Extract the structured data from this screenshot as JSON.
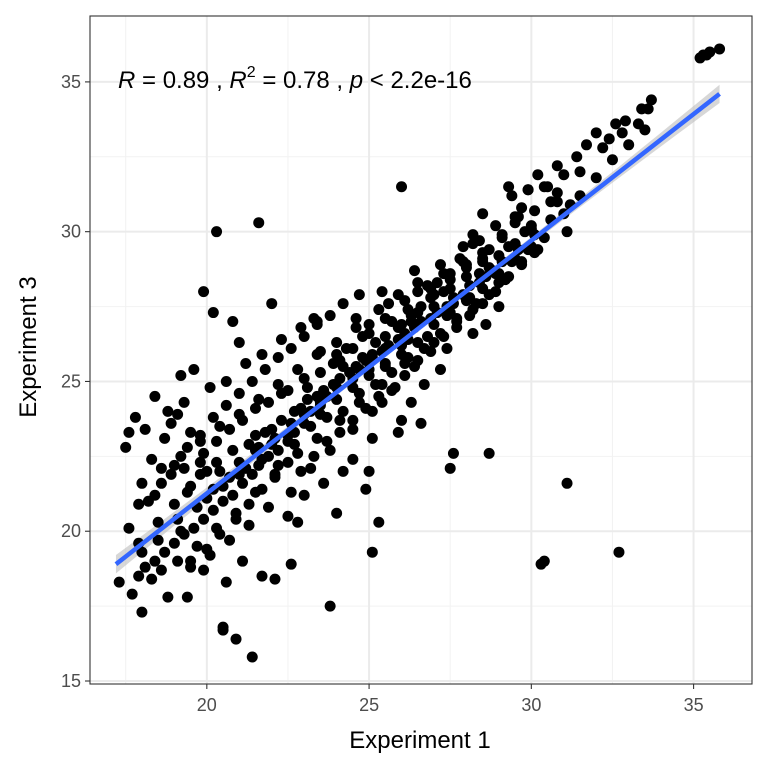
{
  "chart_data": {
    "type": "scatter",
    "xlabel": "Experiment 1",
    "ylabel": "Experiment 3",
    "xlim": [
      16.4,
      36.8
    ],
    "ylim": [
      14.9,
      37.2
    ],
    "xticks": [
      20,
      25,
      30,
      35
    ],
    "yticks": [
      15,
      20,
      25,
      30,
      35
    ],
    "grid": true,
    "annotation": {
      "r_label": "R",
      "r_value": " = 0.89 , ",
      "r2_label": "R",
      "r2_exp": "2",
      "r2_value": " = 0.78 , ",
      "p_label": "p",
      "p_value": " < 2.2e-16"
    },
    "regression": {
      "x": [
        17.2,
        35.8
      ],
      "y": [
        18.9,
        34.6
      ],
      "color": "#3366FF",
      "band_color": "#bdbdbd"
    },
    "point_color": "#000000",
    "points": [
      [
        35.2,
        35.8
      ],
      [
        35.3,
        35.9
      ],
      [
        35.4,
        35.9
      ],
      [
        35.5,
        36.0
      ],
      [
        35.8,
        36.1
      ],
      [
        33.6,
        34.1
      ],
      [
        33.7,
        34.4
      ],
      [
        33.4,
        34.1
      ],
      [
        33.3,
        33.6
      ],
      [
        32.9,
        33.7
      ],
      [
        32.6,
        33.6
      ],
      [
        32.8,
        33.3
      ],
      [
        32.0,
        33.3
      ],
      [
        32.4,
        33.1
      ],
      [
        31.7,
        32.9
      ],
      [
        32.2,
        32.8
      ],
      [
        31.4,
        32.5
      ],
      [
        31.5,
        32.0
      ],
      [
        30.8,
        32.2
      ],
      [
        31.0,
        31.9
      ],
      [
        30.2,
        31.9
      ],
      [
        30.5,
        31.5
      ],
      [
        30.8,
        31.0
      ],
      [
        29.9,
        31.4
      ],
      [
        29.4,
        31.2
      ],
      [
        29.7,
        30.8
      ],
      [
        31.2,
        30.9
      ],
      [
        30.0,
        30.2
      ],
      [
        31.1,
        30.0
      ],
      [
        29.5,
        30.5
      ],
      [
        28.9,
        30.2
      ],
      [
        28.2,
        29.9
      ],
      [
        28.7,
        29.4
      ],
      [
        29.1,
        29.8
      ],
      [
        29.8,
        30.0
      ],
      [
        28.5,
        29.1
      ],
      [
        28.0,
        28.8
      ],
      [
        27.8,
        29.1
      ],
      [
        28.4,
        28.6
      ],
      [
        27.5,
        28.6
      ],
      [
        27.1,
        28.3
      ],
      [
        27.3,
        28.0
      ],
      [
        26.9,
        27.8
      ],
      [
        27.6,
        27.6
      ],
      [
        26.6,
        27.5
      ],
      [
        26.3,
        27.2
      ],
      [
        26.0,
        26.9
      ],
      [
        25.7,
        27.0
      ],
      [
        26.2,
        26.4
      ],
      [
        25.5,
        26.1
      ],
      [
        25.2,
        26.3
      ],
      [
        24.8,
        25.8
      ],
      [
        25.0,
        25.4
      ],
      [
        24.5,
        25.1
      ],
      [
        24.2,
        25.5
      ],
      [
        24.0,
        24.8
      ],
      [
        23.7,
        24.5
      ],
      [
        23.5,
        24.2
      ],
      [
        23.2,
        24.0
      ],
      [
        23.0,
        23.6
      ],
      [
        22.7,
        23.3
      ],
      [
        22.5,
        23.0
      ],
      [
        22.2,
        22.7
      ],
      [
        21.9,
        22.5
      ],
      [
        21.6,
        22.2
      ],
      [
        21.4,
        21.9
      ],
      [
        21.1,
        21.6
      ],
      [
        20.8,
        21.2
      ],
      [
        20.5,
        21.0
      ],
      [
        20.2,
        20.7
      ],
      [
        19.9,
        20.4
      ],
      [
        19.6,
        20.1
      ],
      [
        19.3,
        19.9
      ],
      [
        19.0,
        19.6
      ],
      [
        18.7,
        19.3
      ],
      [
        18.4,
        19.0
      ],
      [
        18.1,
        18.8
      ],
      [
        17.9,
        18.5
      ],
      [
        29.3,
        29.5
      ],
      [
        28.8,
        28.7
      ],
      [
        28.1,
        27.8
      ],
      [
        27.4,
        27.2
      ],
      [
        26.8,
        26.5
      ],
      [
        26.1,
        25.6
      ],
      [
        25.4,
        24.9
      ],
      [
        24.7,
        24.3
      ],
      [
        24.1,
        23.7
      ],
      [
        23.4,
        23.1
      ],
      [
        22.8,
        22.6
      ],
      [
        22.1,
        21.9
      ],
      [
        21.5,
        21.3
      ],
      [
        20.9,
        20.6
      ],
      [
        20.3,
        20.1
      ],
      [
        19.7,
        19.5
      ],
      [
        19.1,
        19.0
      ],
      [
        18.6,
        18.7
      ],
      [
        27.9,
        29.5
      ],
      [
        27.2,
        28.9
      ],
      [
        26.5,
        28.3
      ],
      [
        25.9,
        27.9
      ],
      [
        25.3,
        27.4
      ],
      [
        24.6,
        26.8
      ],
      [
        24.0,
        26.3
      ],
      [
        23.4,
        25.9
      ],
      [
        22.8,
        25.4
      ],
      [
        22.2,
        24.9
      ],
      [
        21.6,
        24.4
      ],
      [
        21.0,
        23.9
      ],
      [
        20.4,
        23.5
      ],
      [
        19.8,
        23.0
      ],
      [
        19.2,
        22.5
      ],
      [
        18.6,
        22.1
      ],
      [
        18.0,
        21.6
      ],
      [
        29.0,
        28.3
      ],
      [
        28.3,
        27.6
      ],
      [
        27.7,
        27.0
      ],
      [
        27.0,
        26.3
      ],
      [
        26.4,
        25.5
      ],
      [
        25.8,
        24.8
      ],
      [
        25.1,
        24.0
      ],
      [
        24.5,
        23.4
      ],
      [
        23.8,
        22.7
      ],
      [
        23.2,
        22.1
      ],
      [
        22.6,
        21.3
      ],
      [
        21.9,
        20.8
      ],
      [
        21.3,
        20.2
      ],
      [
        20.7,
        19.7
      ],
      [
        20.1,
        19.2
      ],
      [
        19.5,
        18.8
      ],
      [
        17.3,
        18.3
      ],
      [
        17.7,
        17.9
      ],
      [
        18.0,
        17.3
      ],
      [
        18.3,
        18.4
      ],
      [
        18.8,
        17.8
      ],
      [
        19.4,
        17.8
      ],
      [
        19.9,
        18.7
      ],
      [
        20.6,
        18.3
      ],
      [
        21.1,
        19.0
      ],
      [
        21.7,
        18.5
      ],
      [
        22.1,
        18.4
      ],
      [
        22.6,
        18.9
      ],
      [
        20.5,
        16.7
      ],
      [
        20.5,
        16.8
      ],
      [
        20.9,
        16.4
      ],
      [
        21.4,
        15.8
      ],
      [
        23.8,
        17.5
      ],
      [
        17.6,
        20.1
      ],
      [
        17.9,
        19.6
      ],
      [
        18.5,
        20.3
      ],
      [
        19.0,
        20.9
      ],
      [
        19.5,
        21.5
      ],
      [
        20.0,
        22.0
      ],
      [
        17.5,
        22.8
      ],
      [
        18.1,
        23.4
      ],
      [
        18.8,
        24.0
      ],
      [
        19.2,
        25.2
      ],
      [
        19.6,
        25.4
      ],
      [
        17.6,
        23.3
      ],
      [
        17.8,
        23.8
      ],
      [
        18.4,
        24.5
      ],
      [
        19.9,
        28.0
      ],
      [
        20.2,
        27.3
      ],
      [
        20.3,
        30.0
      ],
      [
        20.8,
        27.0
      ],
      [
        21.0,
        26.3
      ],
      [
        21.6,
        30.3
      ],
      [
        22.0,
        27.6
      ],
      [
        23.3,
        27.1
      ],
      [
        23.4,
        27.0
      ],
      [
        24.7,
        27.9
      ],
      [
        25.4,
        28.0
      ],
      [
        26.0,
        31.5
      ],
      [
        26.1,
        27.7
      ],
      [
        26.4,
        28.7
      ],
      [
        26.8,
        28.2
      ],
      [
        27.0,
        27.5
      ],
      [
        28.5,
        30.6
      ],
      [
        29.3,
        31.5
      ],
      [
        29.9,
        31.4
      ],
      [
        30.4,
        31.5
      ],
      [
        30.8,
        31.3
      ],
      [
        28.2,
        29.6
      ],
      [
        28.7,
        28.8
      ],
      [
        29.0,
        27.5
      ],
      [
        28.6,
        26.9
      ],
      [
        28.2,
        26.6
      ],
      [
        27.4,
        26.1
      ],
      [
        27.2,
        25.4
      ],
      [
        26.7,
        24.9
      ],
      [
        26.3,
        24.3
      ],
      [
        26.0,
        23.7
      ],
      [
        25.1,
        23.1
      ],
      [
        24.5,
        22.4
      ],
      [
        24.2,
        22.0
      ],
      [
        23.6,
        21.6
      ],
      [
        23.0,
        21.2
      ],
      [
        22.5,
        20.5
      ],
      [
        22.8,
        20.3
      ],
      [
        24.9,
        21.4
      ],
      [
        25.0,
        22.0
      ],
      [
        25.1,
        19.3
      ],
      [
        25.3,
        20.3
      ],
      [
        24.0,
        20.6
      ],
      [
        25.4,
        24.3
      ],
      [
        25.9,
        23.3
      ],
      [
        26.6,
        23.6
      ],
      [
        27.6,
        22.6
      ],
      [
        27.5,
        22.1
      ],
      [
        28.7,
        22.6
      ],
      [
        30.3,
        18.9
      ],
      [
        30.4,
        19.0
      ],
      [
        31.1,
        21.6
      ],
      [
        32.7,
        19.3
      ],
      [
        18.9,
        23.6
      ],
      [
        19.3,
        24.3
      ],
      [
        20.1,
        24.8
      ],
      [
        20.6,
        25.0
      ],
      [
        21.2,
        25.6
      ],
      [
        21.7,
        25.9
      ],
      [
        22.3,
        26.4
      ],
      [
        22.9,
        26.8
      ],
      [
        23.5,
        26.0
      ],
      [
        24.1,
        25.7
      ],
      [
        24.8,
        26.5
      ],
      [
        25.5,
        27.1
      ],
      [
        26.2,
        27.4
      ],
      [
        26.9,
        28.1
      ],
      [
        27.5,
        28.4
      ],
      [
        28.0,
        28.9
      ],
      [
        28.5,
        29.3
      ],
      [
        29.1,
        29.9
      ],
      [
        29.6,
        30.5
      ],
      [
        30.1,
        30.7
      ],
      [
        30.6,
        31.0
      ],
      [
        19.1,
        20.4
      ],
      [
        19.4,
        21.3
      ],
      [
        19.8,
        21.9
      ],
      [
        20.3,
        22.3
      ],
      [
        20.8,
        22.7
      ],
      [
        21.3,
        22.9
      ],
      [
        21.8,
        23.3
      ],
      [
        22.3,
        23.7
      ],
      [
        22.9,
        24.1
      ],
      [
        23.4,
        24.5
      ],
      [
        23.9,
        24.9
      ],
      [
        24.4,
        25.3
      ],
      [
        24.9,
        25.7
      ],
      [
        25.4,
        26.0
      ],
      [
        25.9,
        26.4
      ],
      [
        26.4,
        26.8
      ],
      [
        26.9,
        27.1
      ],
      [
        27.4,
        27.5
      ],
      [
        27.9,
        27.9
      ],
      [
        28.4,
        28.3
      ],
      [
        28.9,
        28.6
      ],
      [
        29.4,
        29.0
      ],
      [
        29.9,
        29.4
      ],
      [
        30.4,
        29.8
      ],
      [
        18.2,
        21.0
      ],
      [
        18.6,
        21.6
      ],
      [
        19.0,
        22.2
      ],
      [
        19.4,
        22.8
      ],
      [
        19.8,
        23.2
      ],
      [
        20.2,
        23.8
      ],
      [
        20.6,
        24.2
      ],
      [
        21.0,
        24.6
      ],
      [
        21.4,
        25.0
      ],
      [
        21.8,
        25.4
      ],
      [
        22.2,
        25.8
      ],
      [
        22.6,
        26.1
      ],
      [
        23.0,
        26.5
      ],
      [
        23.4,
        26.9
      ],
      [
        23.8,
        27.2
      ],
      [
        24.2,
        27.6
      ],
      [
        24.6,
        27.1
      ],
      [
        25.0,
        26.9
      ],
      [
        25.6,
        27.6
      ],
      [
        26.5,
        28.0
      ],
      [
        27.3,
        28.6
      ],
      [
        27.9,
        29.0
      ],
      [
        28.4,
        29.7
      ],
      [
        29.5,
        30.3
      ],
      [
        18.0,
        19.3
      ],
      [
        18.5,
        19.7
      ],
      [
        19.2,
        20.0
      ],
      [
        19.7,
        20.8
      ],
      [
        20.2,
        21.4
      ],
      [
        20.7,
        21.8
      ],
      [
        21.2,
        22.1
      ],
      [
        21.7,
        22.4
      ],
      [
        22.2,
        22.2
      ],
      [
        22.7,
        22.9
      ],
      [
        23.2,
        23.5
      ],
      [
        23.7,
        23.8
      ],
      [
        24.2,
        24.0
      ],
      [
        24.7,
        24.6
      ],
      [
        25.2,
        24.9
      ],
      [
        25.7,
        25.3
      ],
      [
        26.2,
        25.8
      ],
      [
        26.7,
        26.1
      ],
      [
        27.2,
        26.6
      ],
      [
        27.7,
        27.1
      ],
      [
        28.2,
        27.4
      ],
      [
        28.7,
        27.9
      ],
      [
        29.2,
        28.4
      ],
      [
        29.7,
        28.9
      ],
      [
        30.2,
        29.4
      ],
      [
        21.5,
        24.1
      ],
      [
        22.0,
        23.4
      ],
      [
        22.5,
        24.7
      ],
      [
        23.0,
        25.1
      ],
      [
        23.5,
        23.9
      ],
      [
        24.0,
        25.9
      ],
      [
        24.5,
        26.1
      ],
      [
        25.0,
        26.6
      ],
      [
        25.5,
        25.5
      ],
      [
        26.0,
        26.2
      ],
      [
        26.5,
        27.3
      ],
      [
        27.0,
        27.9
      ],
      [
        27.5,
        28.1
      ],
      [
        28.0,
        28.5
      ],
      [
        28.5,
        29.0
      ],
      [
        29.0,
        29.2
      ],
      [
        29.5,
        29.6
      ],
      [
        30.0,
        30.1
      ],
      [
        20.0,
        21.1
      ],
      [
        20.5,
        21.5
      ],
      [
        21.0,
        21.9
      ],
      [
        21.5,
        22.7
      ],
      [
        22.0,
        22.9
      ],
      [
        22.5,
        23.2
      ],
      [
        23.0,
        23.9
      ],
      [
        23.5,
        24.3
      ],
      [
        24.0,
        24.4
      ],
      [
        24.5,
        24.8
      ],
      [
        25.0,
        25.2
      ],
      [
        25.5,
        25.6
      ],
      [
        26.0,
        25.9
      ],
      [
        26.5,
        26.3
      ],
      [
        27.0,
        26.9
      ],
      [
        27.5,
        27.3
      ],
      [
        28.0,
        27.7
      ],
      [
        28.5,
        28.1
      ],
      [
        29.0,
        28.6
      ],
      [
        29.5,
        29.1
      ],
      [
        30.0,
        29.5
      ],
      [
        18.3,
        22.4
      ],
      [
        18.7,
        23.1
      ],
      [
        19.1,
        23.9
      ],
      [
        19.5,
        23.3
      ],
      [
        19.9,
        22.6
      ],
      [
        20.3,
        23.0
      ],
      [
        20.7,
        23.4
      ],
      [
        21.1,
        23.7
      ],
      [
        21.5,
        23.2
      ],
      [
        21.9,
        24.3
      ],
      [
        22.3,
        24.6
      ],
      [
        22.7,
        24.0
      ],
      [
        23.1,
        24.8
      ],
      [
        23.5,
        25.3
      ],
      [
        23.9,
        25.6
      ],
      [
        24.3,
        26.1
      ],
      [
        24.7,
        25.4
      ],
      [
        25.1,
        25.9
      ],
      [
        25.5,
        26.5
      ],
      [
        25.9,
        26.8
      ],
      [
        26.3,
        27.0
      ],
      [
        19.5,
        19.0
      ],
      [
        20.0,
        19.4
      ],
      [
        20.4,
        19.9
      ],
      [
        20.9,
        20.4
      ],
      [
        21.3,
        20.9
      ],
      [
        21.7,
        21.4
      ],
      [
        22.1,
        21.8
      ],
      [
        22.5,
        22.3
      ],
      [
        22.9,
        22.0
      ],
      [
        23.3,
        22.5
      ],
      [
        23.7,
        23.0
      ],
      [
        24.1,
        23.3
      ],
      [
        24.5,
        23.7
      ],
      [
        24.9,
        24.1
      ],
      [
        25.3,
        24.5
      ],
      [
        25.7,
        24.7
      ],
      [
        26.1,
        25.2
      ],
      [
        26.5,
        25.7
      ],
      [
        26.9,
        26.0
      ],
      [
        27.3,
        26.5
      ],
      [
        27.7,
        26.8
      ],
      [
        28.1,
        27.2
      ],
      [
        28.5,
        27.6
      ],
      [
        28.9,
        28.0
      ],
      [
        29.3,
        28.5
      ],
      [
        29.7,
        29.0
      ],
      [
        30.1,
        29.3
      ],
      [
        17.9,
        20.9
      ],
      [
        18.4,
        21.2
      ],
      [
        18.9,
        21.9
      ],
      [
        19.3,
        22.1
      ],
      [
        19.8,
        22.3
      ],
      [
        20.4,
        22.0
      ],
      [
        21.0,
        22.3
      ],
      [
        21.6,
        22.8
      ],
      [
        22.1,
        23.1
      ],
      [
        22.6,
        23.6
      ],
      [
        23.1,
        24.4
      ],
      [
        23.6,
        24.7
      ],
      [
        24.1,
        25.1
      ],
      [
        24.6,
        25.5
      ],
      [
        25.1,
        25.8
      ],
      [
        25.6,
        26.2
      ],
      [
        26.1,
        26.6
      ],
      [
        26.6,
        27.0
      ],
      [
        27.1,
        27.3
      ],
      [
        27.6,
        27.8
      ],
      [
        28.1,
        28.2
      ],
      [
        28.6,
        28.5
      ],
      [
        29.1,
        29.0
      ],
      [
        29.6,
        29.4
      ],
      [
        30.1,
        29.9
      ],
      [
        30.6,
        30.4
      ],
      [
        31.0,
        30.6
      ],
      [
        31.5,
        31.2
      ],
      [
        32.0,
        31.8
      ],
      [
        32.5,
        32.4
      ],
      [
        33.0,
        32.9
      ],
      [
        33.5,
        33.4
      ]
    ]
  }
}
